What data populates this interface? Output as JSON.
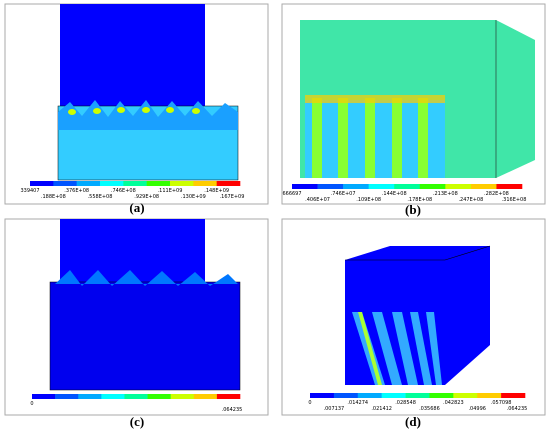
{
  "panels": [
    {
      "label": "(a)",
      "legend_top": [
        "339407",
        ".376E+08",
        ".746E+08",
        ".111E+09",
        ".148E+09"
      ],
      "legend_bottom": [
        ".188E+08",
        ".558E+08",
        ".929E+08",
        ".130E+09",
        ".167E+09"
      ]
    },
    {
      "label": "(b)",
      "legend_top": [
        "666697",
        ".746E+07",
        ".144E+08",
        ".213E+08",
        ".282E+08"
      ],
      "legend_bottom": [
        ".406E+07",
        ".109E+08",
        ".178E+08",
        ".247E+08",
        ".316E+08"
      ]
    },
    {
      "label": "(c)",
      "legend_top": [
        "0"
      ],
      "legend_bottom": [
        ".064235"
      ]
    },
    {
      "label": "(d)",
      "legend_top": [
        "0",
        ".014274",
        ".028548",
        ".042823",
        ".057098"
      ],
      "legend_bottom": [
        ".007137",
        ".021412",
        ".035686",
        ".04996",
        ".064235"
      ]
    }
  ]
}
